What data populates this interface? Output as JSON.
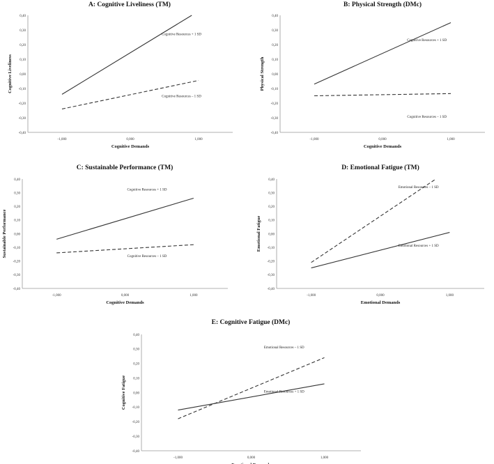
{
  "chart_data": [
    {
      "type": "line",
      "title": "A: Cognitive Liveliness (TM)",
      "xlabel": "Cognitive Demands",
      "ylabel": "Cognitive Liveliness",
      "x_ticks": [
        "-1,000",
        "0,000",
        "1,000"
      ],
      "y_ticks": [
        "0,40",
        "0,30",
        "0,20",
        "0,10",
        "0,00",
        "-0,10",
        "-0,20",
        "-0,30",
        "-0,40"
      ],
      "xlim": [
        -1.5,
        1.5
      ],
      "ylim": [
        -0.4,
        0.4
      ],
      "series": [
        {
          "name": "Cognitive Resources + 1 SD",
          "style": "solid",
          "x": [
            -1.0,
            0.9
          ],
          "y": [
            -0.14,
            0.4
          ]
        },
        {
          "name": "Cognitive Resources – 1 SD",
          "style": "dashed",
          "x": [
            -1.0,
            1.0
          ],
          "y": [
            -0.24,
            -0.045
          ]
        }
      ],
      "annotations": [
        {
          "text": "Cognitive Resources + 1 SD",
          "x": 0.75,
          "y": 0.265
        },
        {
          "text": "Cognitive Resources – 1 SD",
          "x": 0.75,
          "y": -0.16
        }
      ]
    },
    {
      "type": "line",
      "title": "B: Physical Strength (DMc)",
      "xlabel": "Cognitive Demands",
      "ylabel": "Physical Strength",
      "x_ticks": [
        "-1,000",
        "0,000",
        "1,000"
      ],
      "y_ticks": [
        "0,40",
        "0,30",
        "0,20",
        "0,10",
        "0,00",
        "-0,10",
        "-0,20",
        "-0,30",
        "-0,40"
      ],
      "xlim": [
        -1.5,
        1.5
      ],
      "ylim": [
        -0.4,
        0.4
      ],
      "series": [
        {
          "name": "Cognitive Resources + 1 SD",
          "style": "solid",
          "x": [
            -1.0,
            1.0
          ],
          "y": [
            -0.07,
            0.35
          ]
        },
        {
          "name": "Cognitive Resources – 1 SD",
          "style": "dashed",
          "x": [
            -1.0,
            1.0
          ],
          "y": [
            -0.15,
            -0.135
          ]
        }
      ],
      "annotations": [
        {
          "text": "Cognitive Resources + 1 SD",
          "x": 0.65,
          "y": 0.225
        },
        {
          "text": "Cognitive Resources – 1 SD",
          "x": 0.65,
          "y": -0.3
        }
      ]
    },
    {
      "type": "line",
      "title": "C: Sustainable Performance (TM)",
      "xlabel": "Cognitive Demands",
      "ylabel": "Sustainable Performance",
      "x_ticks": [
        "-1,000",
        "0,000",
        "1,000"
      ],
      "y_ticks": [
        "0,40",
        "0,30",
        "0,20",
        "0,10",
        "0,00",
        "-0,10",
        "-0,20",
        "-0,30",
        "-0,40"
      ],
      "xlim": [
        -1.5,
        1.5
      ],
      "ylim": [
        -0.4,
        0.4
      ],
      "series": [
        {
          "name": "Cognitive Resources + 1 SD",
          "style": "solid",
          "x": [
            -1.0,
            1.0
          ],
          "y": [
            -0.04,
            0.26
          ]
        },
        {
          "name": "Cognitive Resources – 1 SD",
          "style": "dashed",
          "x": [
            -1.0,
            1.0
          ],
          "y": [
            -0.14,
            -0.08
          ]
        }
      ],
      "annotations": [
        {
          "text": "Cognitive Resources + 1 SD",
          "x": 0.32,
          "y": 0.315
        },
        {
          "text": "Cognitive Resources – 1 SD",
          "x": 0.32,
          "y": -0.17
        }
      ]
    },
    {
      "type": "line",
      "title": "D: Emotional Fatigue (TM)",
      "xlabel": "Emotional Demands",
      "ylabel": "Emotional Fatigue",
      "x_ticks": [
        "-1,000",
        "0,000",
        "1,000"
      ],
      "y_ticks": [
        "0,40",
        "0,30",
        "0,20",
        "0,10",
        "0,00",
        "-0,10",
        "-0,20",
        "-0,30",
        "-0,40"
      ],
      "xlim": [
        -1.5,
        1.5
      ],
      "ylim": [
        -0.4,
        0.4
      ],
      "series": [
        {
          "name": "Emotional Resources – 1 SD",
          "style": "dashed",
          "x": [
            -1.0,
            0.8
          ],
          "y": [
            -0.21,
            0.4
          ]
        },
        {
          "name": "Emotional Resources + 1 SD",
          "style": "solid",
          "x": [
            -1.0,
            1.0
          ],
          "y": [
            -0.25,
            0.01
          ]
        }
      ],
      "annotations": [
        {
          "text": "Emotional Resources – 1 SD",
          "x": 0.55,
          "y": 0.335
        },
        {
          "text": "Emotional Resources + 1 SD",
          "x": 0.55,
          "y": -0.095
        }
      ]
    },
    {
      "type": "line",
      "title": "E: Cognitive Fatigue (DMc)",
      "xlabel": "Emotional Demands",
      "ylabel": "Cognitive Fatigue",
      "x_ticks": [
        "-1,000",
        "0,000",
        "1,000"
      ],
      "y_ticks": [
        "0,40",
        "0,30",
        "0,20",
        "0,10",
        "0,00",
        "-0,10",
        "-0,20",
        "-0,30",
        "-0,40"
      ],
      "xlim": [
        -1.5,
        1.5
      ],
      "ylim": [
        -0.4,
        0.4
      ],
      "series": [
        {
          "name": "Emotional Resources – 1 SD",
          "style": "dashed",
          "x": [
            -1.0,
            1.0
          ],
          "y": [
            -0.18,
            0.24
          ]
        },
        {
          "name": "Emotional Resources + 1 SD",
          "style": "solid",
          "x": [
            -1.0,
            1.0
          ],
          "y": [
            -0.12,
            0.06
          ]
        }
      ],
      "annotations": [
        {
          "text": "Emotional Resources – 1 SD",
          "x": 0.45,
          "y": 0.305
        },
        {
          "text": "Emotional Resources + 1 SD",
          "x": 0.45,
          "y": 0.0
        }
      ]
    }
  ]
}
